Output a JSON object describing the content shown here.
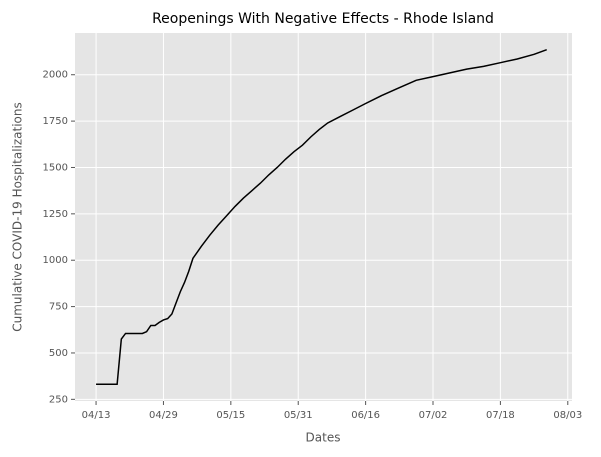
{
  "chart_data": {
    "type": "line",
    "title": "Reopenings With Negative Effects - Rhode Island",
    "x_label": "Dates",
    "y_label": "Cumulative COVID-19 Hospitalizations",
    "x": [
      "04/13",
      "04/18",
      "04/19",
      "04/20",
      "04/21",
      "04/24",
      "04/25",
      "04/26",
      "04/27",
      "04/28",
      "04/29",
      "04/30",
      "05/01",
      "05/02",
      "05/03",
      "05/04",
      "05/05",
      "05/06",
      "05/08",
      "05/10",
      "05/12",
      "05/14",
      "05/16",
      "05/18",
      "05/20",
      "05/22",
      "05/24",
      "05/26",
      "05/28",
      "05/30",
      "06/01",
      "06/03",
      "06/05",
      "06/07",
      "06/10",
      "06/13",
      "06/16",
      "06/20",
      "06/24",
      "06/28",
      "07/02",
      "07/06",
      "07/10",
      "07/14",
      "07/18",
      "07/22",
      "07/26",
      "07/29"
    ],
    "series": [
      {
        "name": "Hospitalizations",
        "color": "#000000",
        "values": [
          331,
          331,
          575,
          605,
          605,
          605,
          615,
          648,
          648,
          665,
          678,
          685,
          710,
          770,
          830,
          880,
          940,
          1010,
          1075,
          1135,
          1190,
          1240,
          1290,
          1335,
          1375,
          1415,
          1460,
          1500,
          1545,
          1585,
          1620,
          1665,
          1705,
          1740,
          1775,
          1810,
          1845,
          1890,
          1930,
          1970,
          1990,
          2010,
          2030,
          2045,
          2065,
          2085,
          2110,
          2135
        ]
      }
    ],
    "xlim": [
      "04/08",
      "08/04"
    ],
    "xticks": [
      "04/13",
      "04/29",
      "05/15",
      "05/31",
      "06/16",
      "07/02",
      "07/18",
      "08/03"
    ],
    "ylim": [
      241,
      2225
    ],
    "yticks": [
      250,
      500,
      750,
      1000,
      1250,
      1500,
      1750,
      2000
    ],
    "grid": true
  }
}
